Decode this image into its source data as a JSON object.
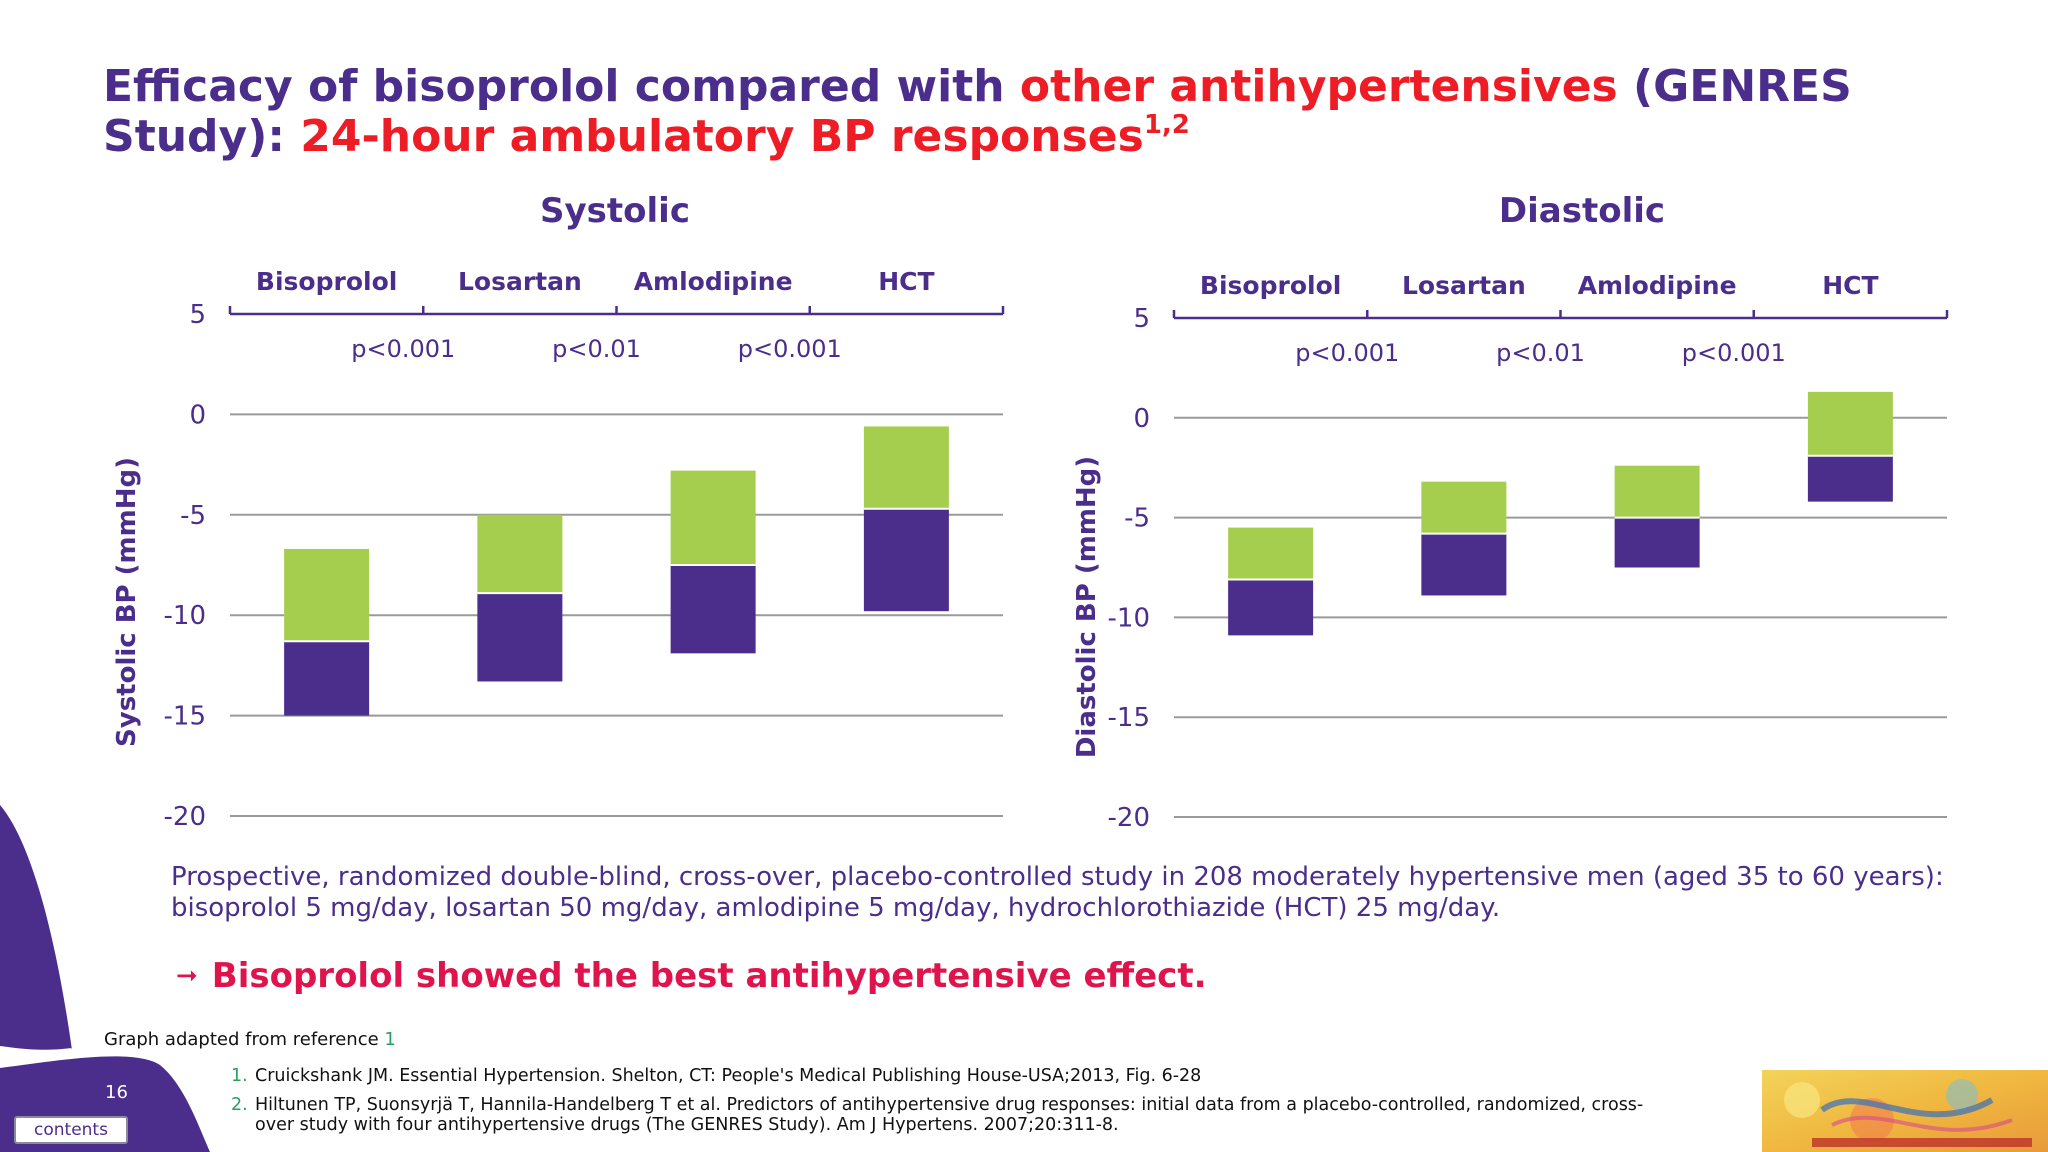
{
  "slide": {
    "title_part1": "Efficacy of bisoprolol compared with ",
    "title_part2": "other antihypertensives",
    "title_part3": " (GENRES Study): ",
    "title_part4": "24-hour ambulatory BP responses",
    "title_sup": "1,2",
    "study_text": "Prospective, randomized double-blind, cross-over, placebo-controlled study in 208 moderately hypertensive men (aged 35 to 60 years): bisoprolol 5 mg/day, losartan 50 mg/day, amlodipine 5 mg/day, hydrochlorothiazide (HCT) 25 mg/day.",
    "conclusion_arrow": "➞",
    "conclusion": "Bisoprolol showed the best antihypertensive effect.",
    "adapted_prefix": "Graph adapted from reference ",
    "adapted_ref": "1",
    "references": [
      {
        "num": "1.",
        "text": "Cruickshank JM. Essential Hypertension. Shelton, CT: People's Medical Publishing House-USA;2013, Fig. 6-28"
      },
      {
        "num": "2.",
        "text": "Hiltunen TP, Suonsyrjä T, Hannila-Handelberg T et al. Predictors of antihypertensive drug responses: initial data from a placebo-controlled, randomized, cross-over study with four antihypertensive drugs (The GENRES Study). Am J Hypertens. 2007;20:311-8."
      }
    ],
    "page_number": "16",
    "contents_button": "contents",
    "colors": {
      "purple": "#4b2e8c",
      "green": "#a5cd4e",
      "red": "#ee1c25",
      "magenta": "#e0144c"
    }
  },
  "chart_data": [
    {
      "type": "bar",
      "subtype": "floating-stacked",
      "title": "Systolic",
      "ylabel": "Systolic BP (mmHg)",
      "ylim": [
        -20,
        5
      ],
      "yticks": [
        5,
        0,
        -5,
        -10,
        -15,
        -20
      ],
      "grid": true,
      "categories": [
        "Bisoprolol",
        "Losartan",
        "Amlodipine",
        "HCT"
      ],
      "p_values": [
        "p<0.001",
        "p<0.01",
        "p<0.001"
      ],
      "series": [
        {
          "color": "#4b2e8c",
          "ranges": [
            [
              -15.0,
              -11.3
            ],
            [
              -13.3,
              -8.9
            ],
            [
              -11.9,
              -7.5
            ],
            [
              -9.8,
              -4.7
            ]
          ]
        },
        {
          "color": "#a5cd4e",
          "ranges": [
            [
              -11.3,
              -6.7
            ],
            [
              -8.9,
              -5.0
            ],
            [
              -7.5,
              -2.8
            ],
            [
              -4.7,
              -0.6
            ]
          ]
        }
      ]
    },
    {
      "type": "bar",
      "subtype": "floating-stacked",
      "title": "Diastolic",
      "ylabel": "Diastolic BP (mmHg)",
      "ylim": [
        -20,
        5
      ],
      "yticks": [
        5,
        0,
        -5,
        -10,
        -15,
        -20
      ],
      "grid": true,
      "categories": [
        "Bisoprolol",
        "Losartan",
        "Amlodipine",
        "HCT"
      ],
      "p_values": [
        "p<0.001",
        "p<0.01",
        "p<0.001"
      ],
      "series": [
        {
          "color": "#4b2e8c",
          "ranges": [
            [
              -10.9,
              -8.1
            ],
            [
              -8.9,
              -5.8
            ],
            [
              -7.5,
              -5.0
            ],
            [
              -4.2,
              -1.9
            ]
          ]
        },
        {
          "color": "#a5cd4e",
          "ranges": [
            [
              -8.1,
              -5.5
            ],
            [
              -5.8,
              -3.2
            ],
            [
              -5.0,
              -2.4
            ],
            [
              -1.9,
              1.3
            ]
          ]
        }
      ]
    }
  ]
}
